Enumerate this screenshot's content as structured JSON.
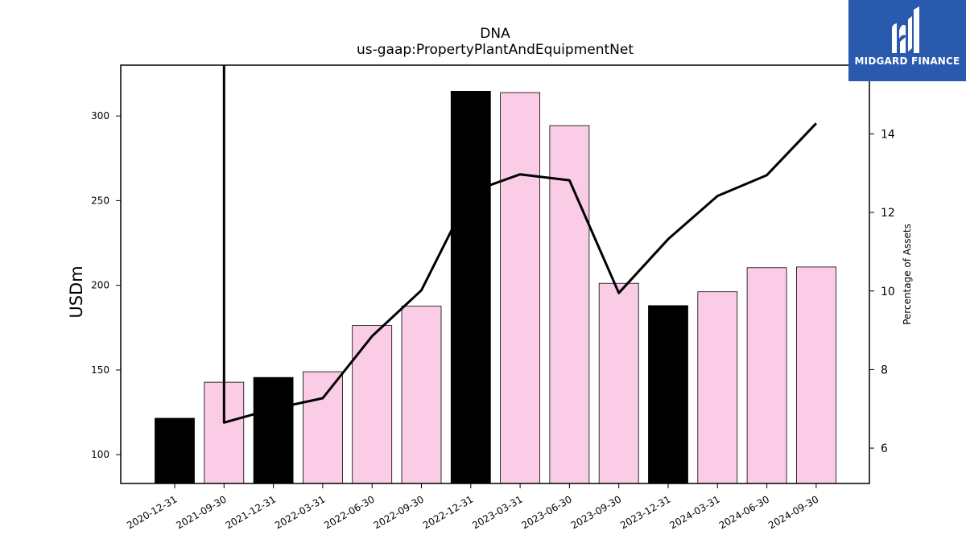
{
  "chart_data": {
    "type": "bar",
    "title": "DNA",
    "subtitle": "us-gaap:PropertyPlantAndEquipmentNet",
    "ylabel": "USDm",
    "y2label": "Percentage of Assets",
    "categories": [
      "2020-12-31",
      "2021-09-30",
      "2021-12-31",
      "2022-03-31",
      "2022-06-30",
      "2022-09-30",
      "2022-12-31",
      "2023-03-31",
      "2023-06-30",
      "2023-09-30",
      "2023-12-31",
      "2024-03-31",
      "2024-06-30",
      "2024-09-30"
    ],
    "series": [
      {
        "values": [
          121.5,
          142.8,
          145.6,
          149.0,
          176.3,
          187.7,
          314.6,
          313.8,
          294.3,
          201.2,
          188.0,
          196.2,
          210.4,
          210.8
        ],
        "colors": [
          "#000000",
          "#fbcce6",
          "#000000",
          "#fbcce6",
          "#fbcce6",
          "#fbcce6",
          "#000000",
          "#fbcce6",
          "#fbcce6",
          "#fbcce6",
          "#000000",
          "#fbcce6",
          "#fbcce6",
          "#fbcce6"
        ],
        "axis": "left"
      },
      {
        "type": "line",
        "axis": "right",
        "color": "#000000",
        "values": [
          null,
          6.65,
          7.0,
          7.27,
          8.85,
          10.02,
          12.52,
          12.97,
          12.82,
          9.95,
          11.32,
          12.42,
          12.95,
          14.27
        ],
        "start_above_axis": true
      }
    ],
    "ylim": [
      83,
      330
    ],
    "yticks": [
      100,
      150,
      200,
      250,
      300
    ],
    "y2lim": [
      5.1,
      15.75
    ],
    "y2ticks": [
      6,
      8,
      10,
      12,
      14
    ],
    "grid": false
  },
  "logo": {
    "text": "MIDGARD FINANCE",
    "color": "#2a5aad"
  }
}
